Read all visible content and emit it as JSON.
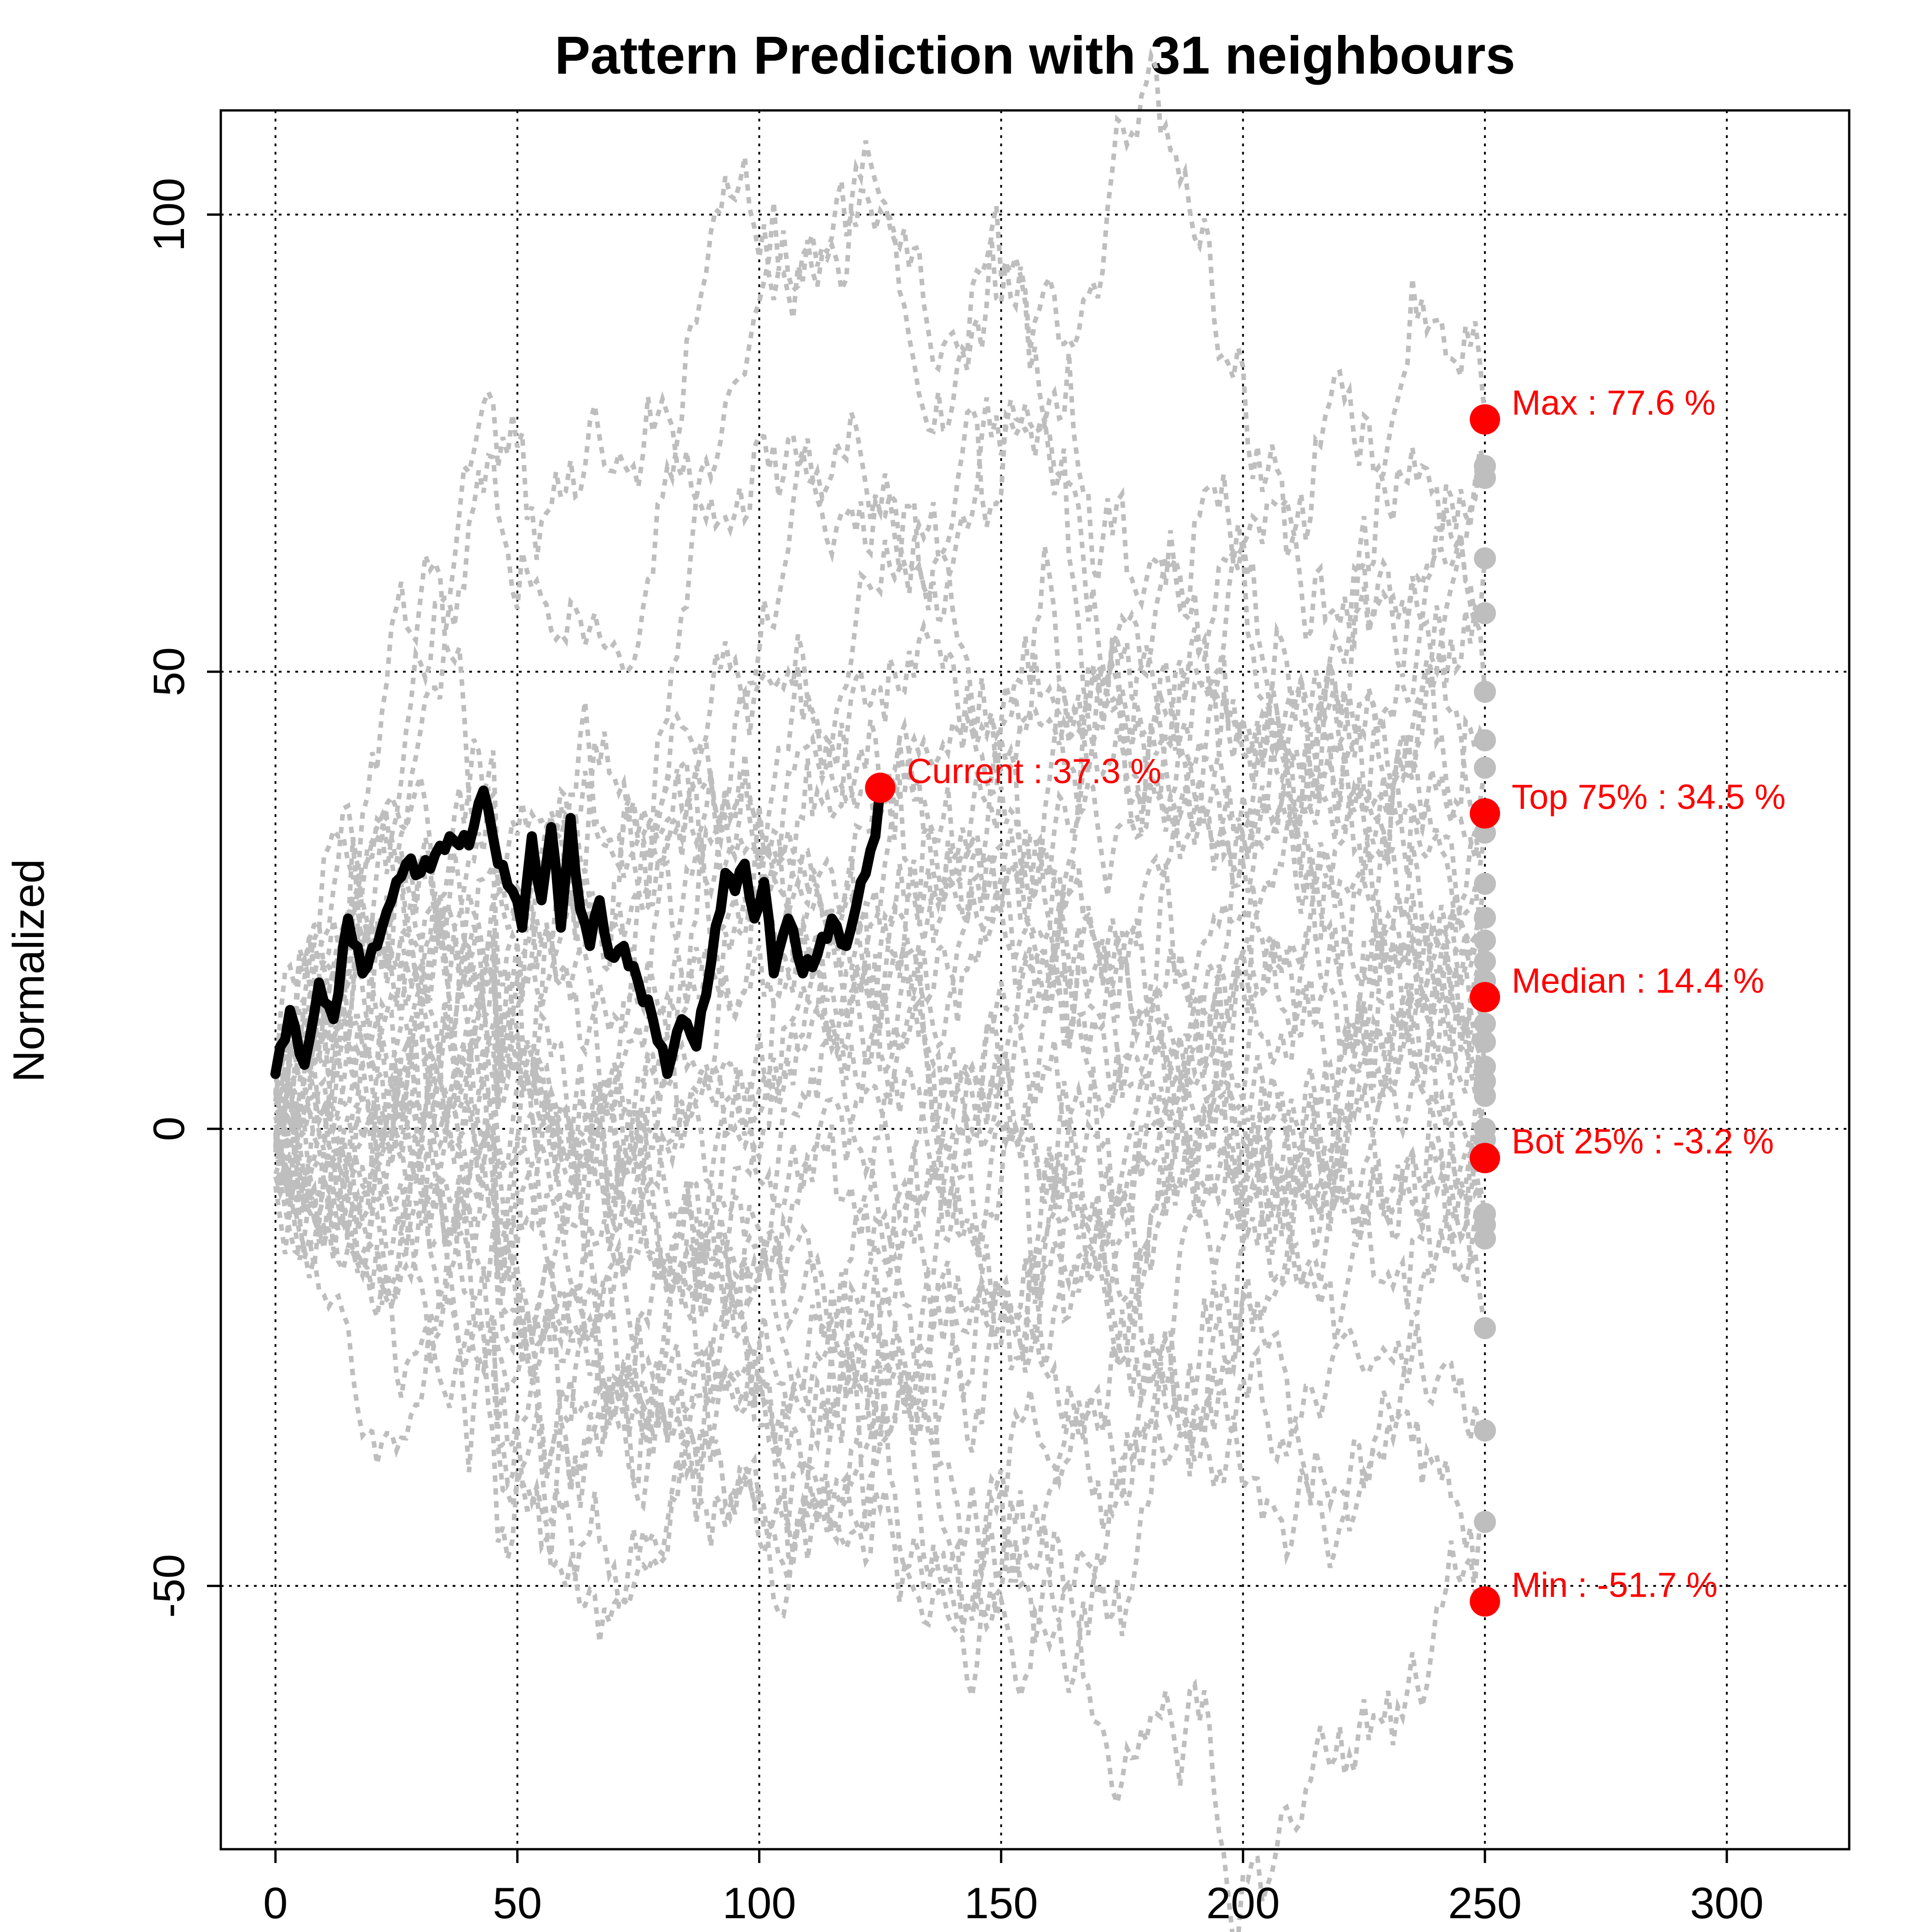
{
  "chart_data": {
    "type": "line",
    "title": "Pattern Prediction with 31 neighbours",
    "xlabel": "",
    "ylabel": "Normalized",
    "xlim": [
      -11.3,
      325.3
    ],
    "ylim": [
      -78.8,
      111.4
    ],
    "x_ticks": [
      0,
      50,
      100,
      150,
      200,
      250,
      300
    ],
    "y_ticks": [
      -50,
      0,
      50,
      100
    ],
    "grid": true,
    "colors": {
      "neighbour": "#bebebe",
      "current": "#000000",
      "marker": "#ff0000"
    },
    "current_series": {
      "name": "Current",
      "x_end": 125,
      "anchors": [
        [
          0,
          6
        ],
        [
          3,
          13
        ],
        [
          6,
          7
        ],
        [
          9,
          16
        ],
        [
          12,
          12
        ],
        [
          15,
          23
        ],
        [
          18,
          17
        ],
        [
          21,
          20
        ],
        [
          24,
          25
        ],
        [
          27,
          29
        ],
        [
          30,
          28
        ],
        [
          33,
          30
        ],
        [
          36,
          32
        ],
        [
          40,
          31
        ],
        [
          43,
          37
        ],
        [
          46,
          29
        ],
        [
          49,
          26
        ],
        [
          51,
          22
        ],
        [
          53,
          32
        ],
        [
          55,
          25
        ],
        [
          57,
          33
        ],
        [
          59,
          22
        ],
        [
          61,
          34
        ],
        [
          63,
          24
        ],
        [
          65,
          20
        ],
        [
          67,
          25
        ],
        [
          69,
          19
        ],
        [
          72,
          20
        ],
        [
          75,
          16
        ],
        [
          78,
          12
        ],
        [
          81,
          6
        ],
        [
          84,
          12
        ],
        [
          87,
          9
        ],
        [
          90,
          18
        ],
        [
          93,
          28
        ],
        [
          95,
          26
        ],
        [
          97,
          29
        ],
        [
          99,
          23
        ],
        [
          101,
          27
        ],
        [
          103,
          17
        ],
        [
          106,
          23
        ],
        [
          109,
          17
        ],
        [
          112,
          19
        ],
        [
          115,
          23
        ],
        [
          118,
          20
        ],
        [
          121,
          27
        ],
        [
          124,
          32
        ],
        [
          125,
          37.3
        ]
      ]
    },
    "neighbour_endpoints": [
      77.6,
      72.5,
      71.2,
      56.4,
      47.8,
      42.5,
      39.5,
      34.5,
      32.4,
      23.1,
      20.6,
      18.3,
      14.4,
      9.5,
      6.8,
      5.2,
      3.6,
      0,
      -3.2,
      -9.3,
      -10.5,
      -12,
      -21.8,
      -33,
      -43,
      -51.7,
      -1.2,
      11.5,
      16.2,
      26.8,
      62.4
    ],
    "markers": [
      {
        "label": "Current : 37.3 %",
        "x": 125,
        "y": 37.3
      },
      {
        "label": "Max : 77.6 %",
        "x": 250,
        "y": 77.6
      },
      {
        "label": "Top 75% : 34.5 %",
        "x": 250,
        "y": 34.5
      },
      {
        "label": "Median : 14.4 %",
        "x": 250,
        "y": 14.4
      },
      {
        "label": "Bot 25% : -3.2 %",
        "x": 250,
        "y": -3.2
      },
      {
        "label": "Min : -51.7 %",
        "x": 250,
        "y": -51.7
      }
    ]
  }
}
